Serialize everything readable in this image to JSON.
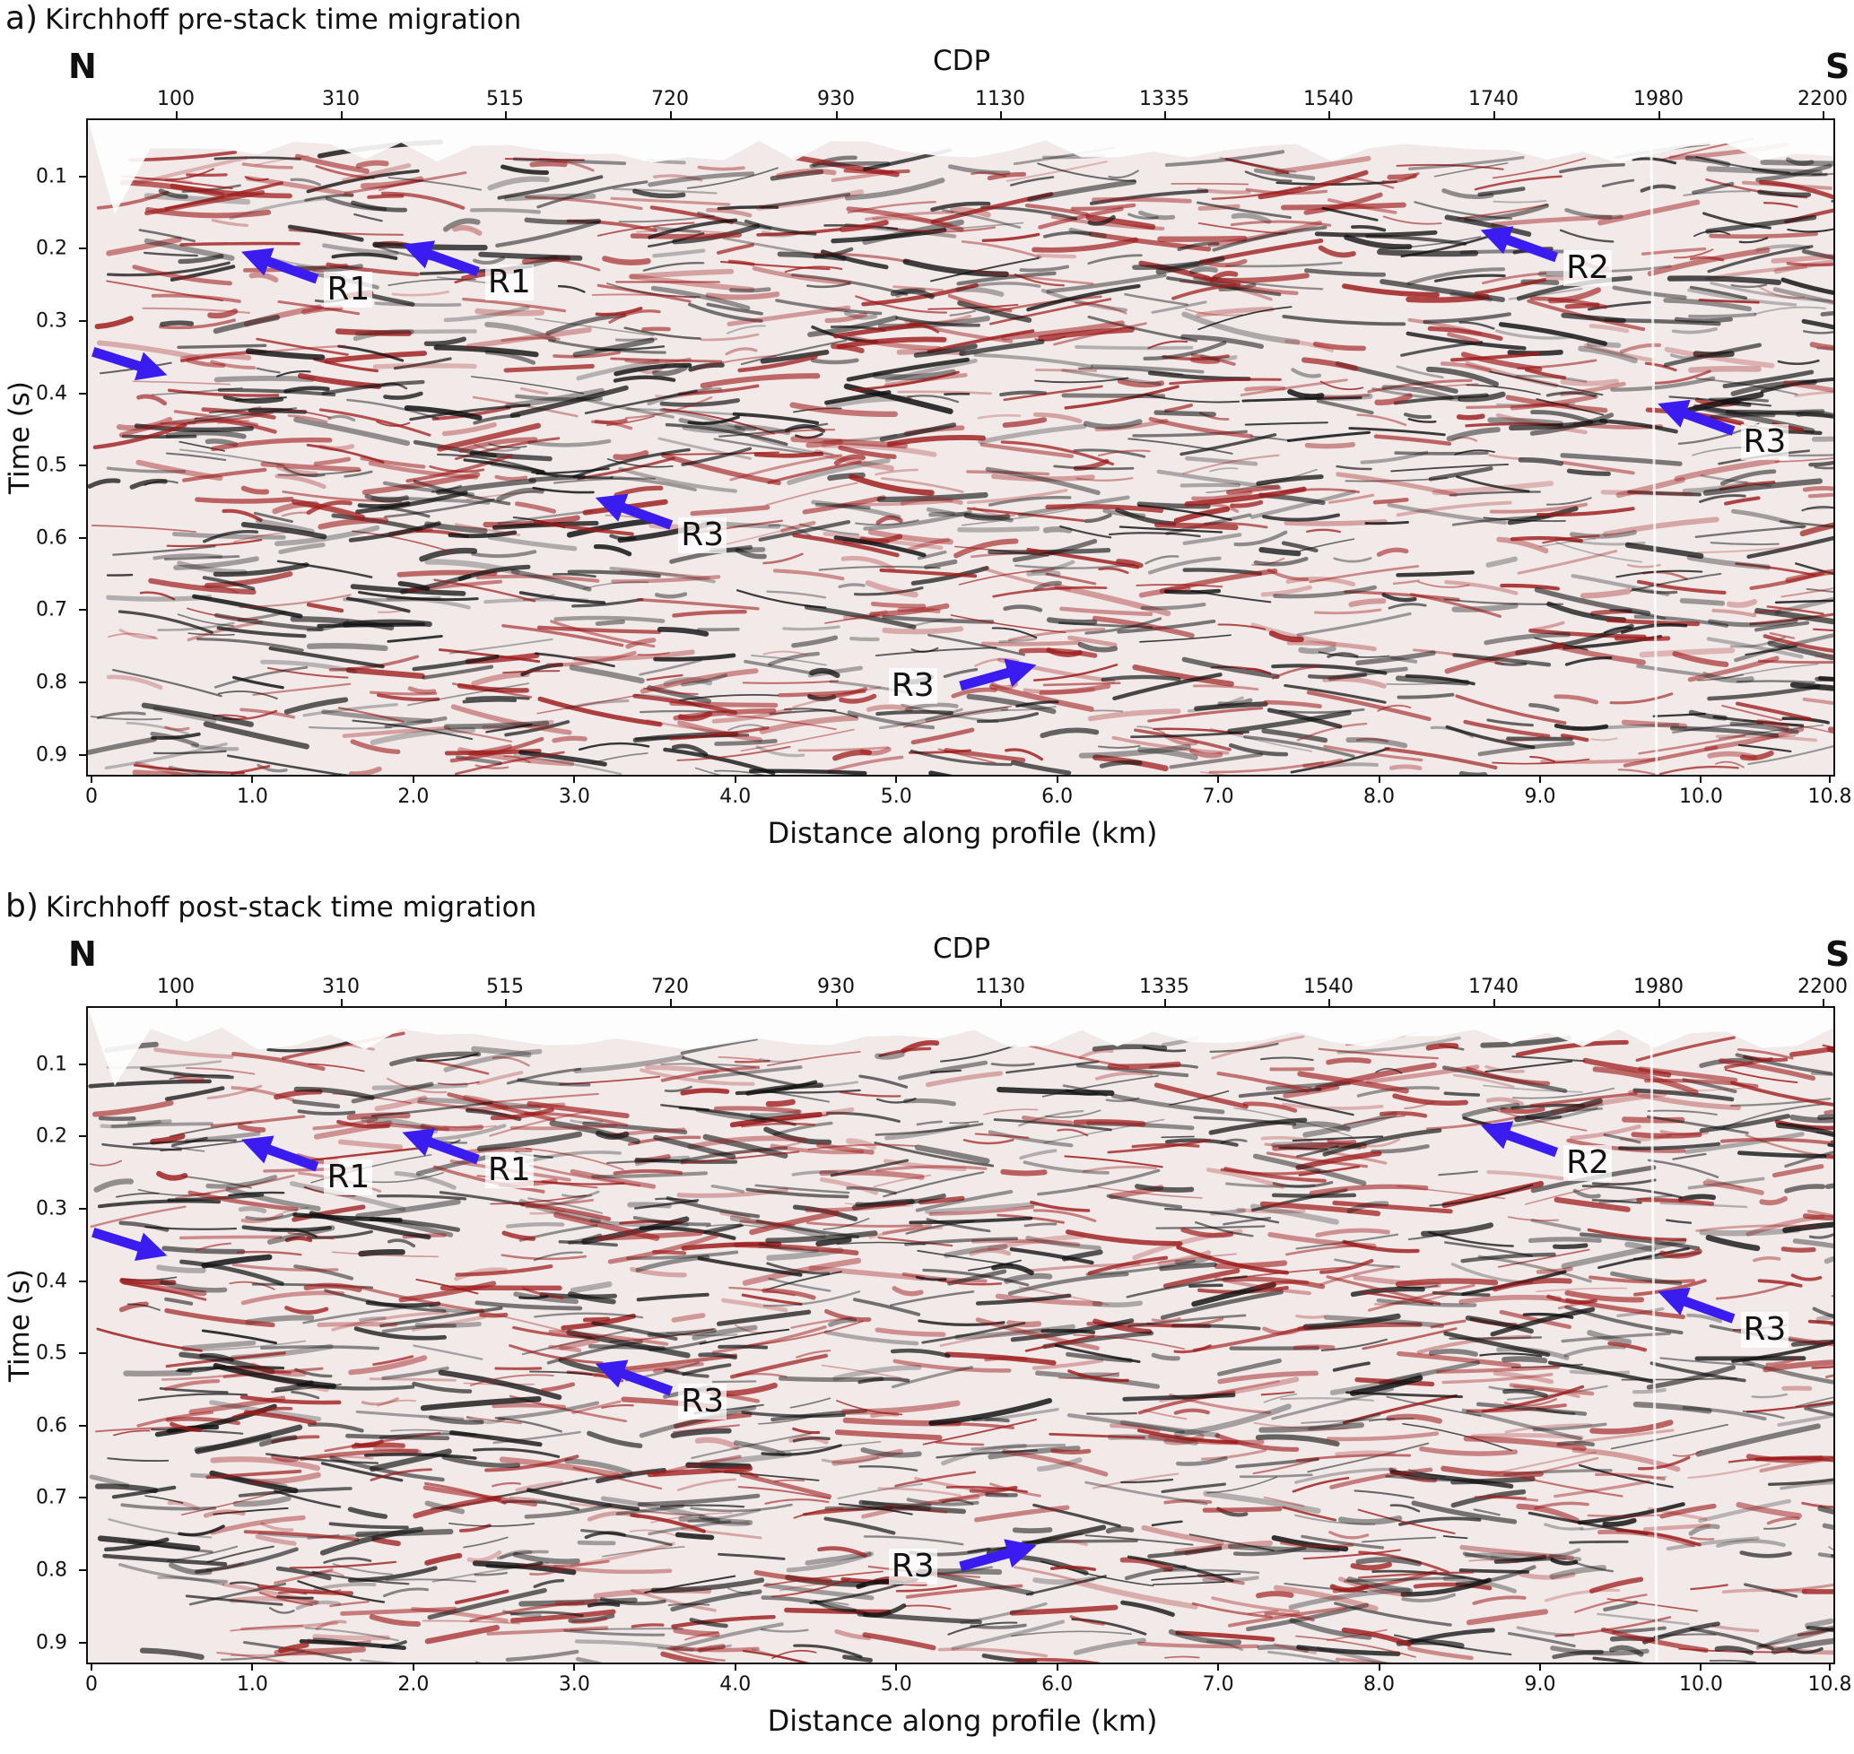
{
  "panels": [
    {
      "id": "a",
      "label": "a)",
      "title": "Kirchhoff pre-stack time migration",
      "north": "N",
      "south": "S",
      "top_axis_label": "CDP",
      "cdp_ticks": [
        "100",
        "310",
        "515",
        "720",
        "930",
        "1130",
        "1335",
        "1540",
        "1740",
        "1980",
        "2200"
      ],
      "y_axis_label": "Time (s)",
      "y_ticks": [
        "0.1",
        "0.2",
        "0.3",
        "0.4",
        "0.5",
        "0.6",
        "0.7",
        "0.8",
        "0.9"
      ],
      "x_axis_label": "Distance along profile (km)",
      "x_ticks": [
        "0",
        "1.0",
        "2.0",
        "3.0",
        "4.0",
        "5.0",
        "6.0",
        "7.0",
        "8.0",
        "9.0",
        "10.0",
        "10.8"
      ],
      "annotations": [
        {
          "text": "R1",
          "distance_km": 1.0,
          "time_s": 0.21
        },
        {
          "text": "R1",
          "distance_km": 2.0,
          "time_s": 0.2
        },
        {
          "text": "R2",
          "distance_km": 8.7,
          "time_s": 0.18
        },
        {
          "text": "",
          "distance_km": 0.4,
          "time_s": 0.37
        },
        {
          "text": "R3",
          "distance_km": 9.8,
          "time_s": 0.42
        },
        {
          "text": "R3",
          "distance_km": 3.2,
          "time_s": 0.55
        },
        {
          "text": "R3",
          "distance_km": 5.8,
          "time_s": 0.78
        }
      ]
    },
    {
      "id": "b",
      "label": "b)",
      "title": "Kirchhoff post-stack time migration",
      "north": "N",
      "south": "S",
      "top_axis_label": "CDP",
      "cdp_ticks": [
        "100",
        "310",
        "515",
        "720",
        "930",
        "1130",
        "1335",
        "1540",
        "1740",
        "1980",
        "2200"
      ],
      "y_axis_label": "Time (s)",
      "y_ticks": [
        "0.1",
        "0.2",
        "0.3",
        "0.4",
        "0.5",
        "0.6",
        "0.7",
        "0.8",
        "0.9"
      ],
      "x_axis_label": "Distance along profile (km)",
      "x_ticks": [
        "0",
        "1.0",
        "2.0",
        "3.0",
        "4.0",
        "5.0",
        "6.0",
        "7.0",
        "8.0",
        "9.0",
        "10.0",
        "10.8"
      ],
      "annotations": [
        {
          "text": "R1",
          "distance_km": 1.0,
          "time_s": 0.21
        },
        {
          "text": "R1",
          "distance_km": 2.0,
          "time_s": 0.2
        },
        {
          "text": "R2",
          "distance_km": 8.7,
          "time_s": 0.19
        },
        {
          "text": "",
          "distance_km": 0.4,
          "time_s": 0.36
        },
        {
          "text": "R3",
          "distance_km": 9.8,
          "time_s": 0.42
        },
        {
          "text": "R3",
          "distance_km": 3.2,
          "time_s": 0.52
        },
        {
          "text": "R3",
          "distance_km": 5.8,
          "time_s": 0.77
        }
      ]
    }
  ],
  "colors": {
    "positive_amplitude": "#9e1b1b",
    "negative_amplitude": "#111111",
    "arrow": "#3b1cf0",
    "background": "#ffffff"
  }
}
